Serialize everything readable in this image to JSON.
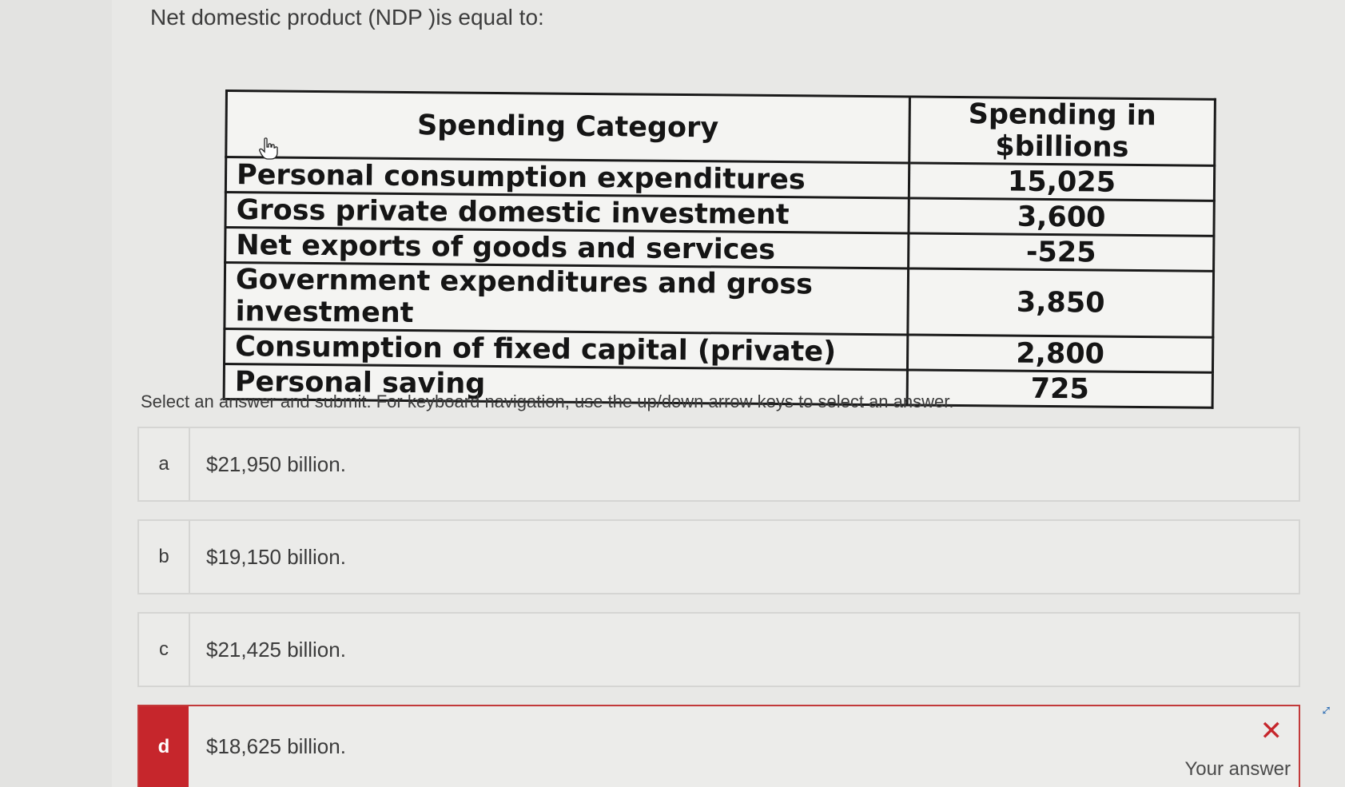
{
  "question": "Net domestic product (NDP )is equal to:",
  "table": {
    "headers": [
      "Spending Category",
      "Spending in $billions"
    ],
    "rows": [
      {
        "category": "Personal consumption expenditures",
        "value": "15,025"
      },
      {
        "category": "Gross private domestic investment",
        "value": "3,600"
      },
      {
        "category": "Net exports of goods and services",
        "value": "-525"
      },
      {
        "category": "Government expenditures and gross investment",
        "value": "3,850"
      },
      {
        "category": "Consumption of fixed capital (private)",
        "value": "2,800"
      },
      {
        "category": "Personal saving",
        "value": "725"
      }
    ]
  },
  "instruction": "Select an answer and submit. For keyboard navigation, use the up/down arrow keys to select an answer.",
  "options": [
    {
      "letter": "a",
      "text": "$21,950 billion."
    },
    {
      "letter": "b",
      "text": "$19,150 billion."
    },
    {
      "letter": "c",
      "text": "$21,425 billion."
    },
    {
      "letter": "d",
      "text": "$18,625 billion."
    }
  ],
  "selected": {
    "status_icon": "x-icon",
    "label": "Your answer",
    "color": "#c6262c"
  },
  "icons": {
    "expand": "expand-icon",
    "cursor": "hand-cursor-icon"
  }
}
